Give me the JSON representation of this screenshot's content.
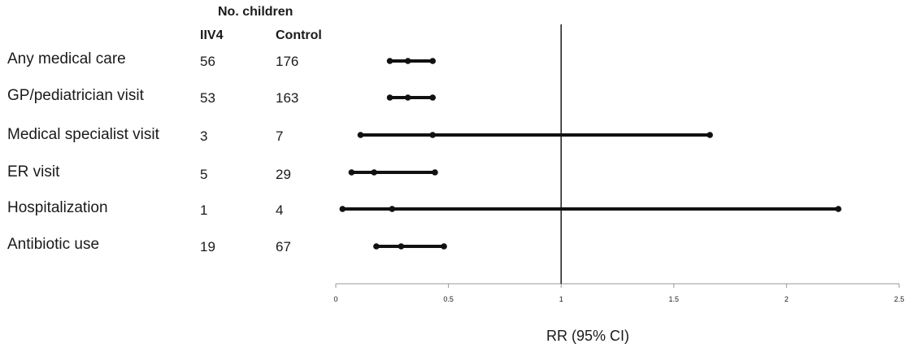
{
  "table_header": {
    "group_title": "No. children",
    "col_iiv4": "IIV4",
    "col_control": "Control"
  },
  "chart_data": {
    "type": "forest",
    "xlabel": "RR (95% CI)",
    "xlim": [
      0,
      2.5
    ],
    "xticks": [
      0,
      0.5,
      1,
      1.5,
      2,
      2.5
    ],
    "xtick_labels": [
      "0",
      "0.5",
      "1",
      "1.5",
      "2",
      "2.5"
    ],
    "reference_line": 1,
    "rows": [
      {
        "label": "Any medical care",
        "iiv4": "56",
        "control": "176",
        "rr": 0.32,
        "lo": 0.24,
        "hi": 0.43
      },
      {
        "label": "GP/pediatrician visit",
        "iiv4": "53",
        "control": "163",
        "rr": 0.32,
        "lo": 0.24,
        "hi": 0.43
      },
      {
        "label": "Medical specialist visit",
        "iiv4": "3",
        "control": "7",
        "rr": 0.43,
        "lo": 0.11,
        "hi": 1.66
      },
      {
        "label": "ER visit",
        "iiv4": "5",
        "control": "29",
        "rr": 0.17,
        "lo": 0.07,
        "hi": 0.44
      },
      {
        "label": "Hospitalization",
        "iiv4": "1",
        "control": "4",
        "rr": 0.25,
        "lo": 0.03,
        "hi": 2.23
      },
      {
        "label": "Antibiotic use",
        "iiv4": "19",
        "control": "67",
        "rr": 0.29,
        "lo": 0.18,
        "hi": 0.48
      }
    ]
  }
}
